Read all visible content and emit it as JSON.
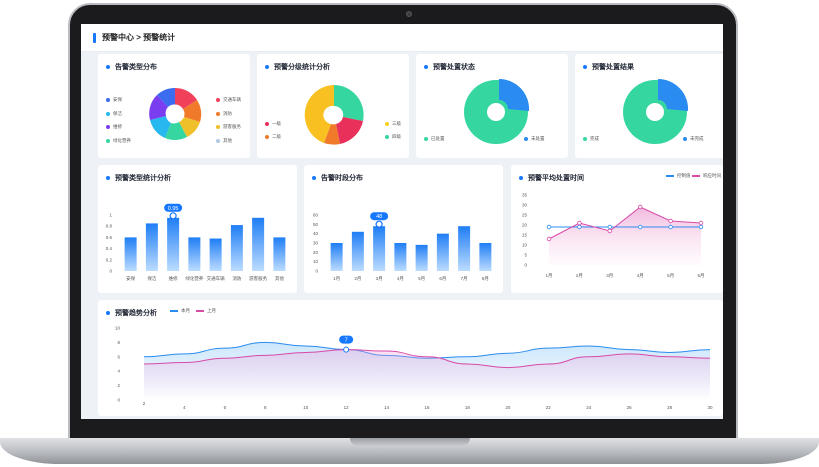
{
  "breadcrumb": "预警中心 > 预警统计",
  "cards": {
    "type_dist": {
      "title": "告警类型分布",
      "legend_left": [
        {
          "label": "安保",
          "color": "#3c6cf0"
        },
        {
          "label": "保洁",
          "color": "#28b8f0"
        },
        {
          "label": "维修",
          "color": "#7b3df0"
        },
        {
          "label": "绿化营养",
          "color": "#36d6a0"
        }
      ],
      "legend_right": [
        {
          "label": "交通车辆",
          "color": "#f0405a"
        },
        {
          "label": "消防",
          "color": "#f07a2a"
        },
        {
          "label": "游客服务",
          "color": "#f0c02a"
        },
        {
          "label": "其他",
          "color": "#b0c8e0"
        }
      ]
    },
    "level_dist": {
      "title": "预警分级统计分析",
      "legend_left": [
        {
          "label": "一级",
          "color": "#e8305a"
        },
        {
          "label": "二级",
          "color": "#f07a2a"
        }
      ],
      "legend_right": [
        {
          "label": "三级",
          "color": "#f8d020"
        },
        {
          "label": "四级",
          "color": "#36d6a0"
        }
      ]
    },
    "status": {
      "title": "预警处置状态",
      "legend": [
        {
          "label": "已处置",
          "color": "#36d6a0"
        },
        {
          "label": "未处置",
          "color": "#2a8cf0"
        }
      ]
    },
    "result": {
      "title": "预警处置结果",
      "legend": [
        {
          "label": "完成",
          "color": "#36d6a0"
        },
        {
          "label": "未完成",
          "color": "#2a8cf0"
        }
      ]
    },
    "type_stats": {
      "title": "预警类型统计分析"
    },
    "time_dist": {
      "title": "告警时段分布"
    },
    "avg_time": {
      "title": "预警平均处置时间",
      "legend": [
        {
          "label": "控制值",
          "color": "#2a8cf0"
        },
        {
          "label": "响应时间",
          "color": "#d84aa8"
        }
      ]
    },
    "trend": {
      "title": "预警趋势分析",
      "legend": [
        {
          "label": "本月",
          "color": "#2a8cf0"
        },
        {
          "label": "上月",
          "color": "#d84aa8"
        }
      ]
    }
  },
  "chart_data": [
    {
      "type": "bar",
      "title": "预警类型统计分析",
      "categories": [
        "安保",
        "保洁",
        "维修",
        "绿化营养",
        "交通车辆",
        "消防",
        "游客服务",
        "其他"
      ],
      "values": [
        0.6,
        0.85,
        0.95,
        0.6,
        0.58,
        0.82,
        0.95,
        0.6
      ],
      "ylim": [
        0,
        1
      ],
      "yticks": [
        "0",
        "0.2",
        "0.4",
        "0.6",
        "0.8",
        "1"
      ],
      "highlight": {
        "index": 2,
        "label": "0.95"
      }
    },
    {
      "type": "bar",
      "title": "告警时段分布",
      "categories": [
        "1月",
        "2月",
        "3月",
        "4月",
        "5月",
        "6月",
        "7月",
        "8月"
      ],
      "values": [
        30,
        42,
        48,
        30,
        28,
        40,
        48,
        30
      ],
      "ylim": [
        0,
        60
      ],
      "yticks": [
        "0",
        "10",
        "20",
        "30",
        "40",
        "50",
        "60"
      ],
      "highlight": {
        "index": 2,
        "label": "48"
      }
    },
    {
      "type": "line",
      "title": "预警平均处置时间",
      "categories": [
        "1月",
        "2月",
        "3月",
        "4月",
        "5月",
        "6月"
      ],
      "yticks": [
        "0",
        "5",
        "10",
        "15",
        "20",
        "25",
        "30",
        "35"
      ],
      "ylim": [
        0,
        35
      ],
      "series": [
        {
          "name": "控制值",
          "values": [
            19,
            19,
            19,
            19,
            19,
            19
          ]
        },
        {
          "name": "响应时间",
          "values": [
            13,
            21,
            17,
            29,
            22,
            21
          ]
        }
      ]
    },
    {
      "type": "line",
      "title": "预警趋势分析",
      "x": [
        "2",
        "4",
        "6",
        "8",
        "10",
        "12",
        "14",
        "16",
        "18",
        "20",
        "22",
        "24",
        "26",
        "28",
        "30"
      ],
      "yticks": [
        "0",
        "2",
        "4",
        "6",
        "8",
        "10"
      ],
      "ylim": [
        0,
        10
      ],
      "series": [
        {
          "name": "本月",
          "values": [
            6.0,
            6.4,
            7.2,
            8.0,
            7.5,
            7.0,
            6.2,
            5.8,
            6.0,
            6.5,
            7.2,
            7.5,
            7.0,
            6.6,
            7.0
          ]
        },
        {
          "name": "上月",
          "values": [
            5.0,
            5.2,
            5.8,
            6.2,
            6.6,
            7.0,
            6.8,
            6.0,
            5.0,
            4.5,
            5.0,
            6.0,
            6.4,
            6.0,
            5.8
          ]
        }
      ],
      "highlight": {
        "index": 5,
        "label": "7"
      }
    }
  ]
}
